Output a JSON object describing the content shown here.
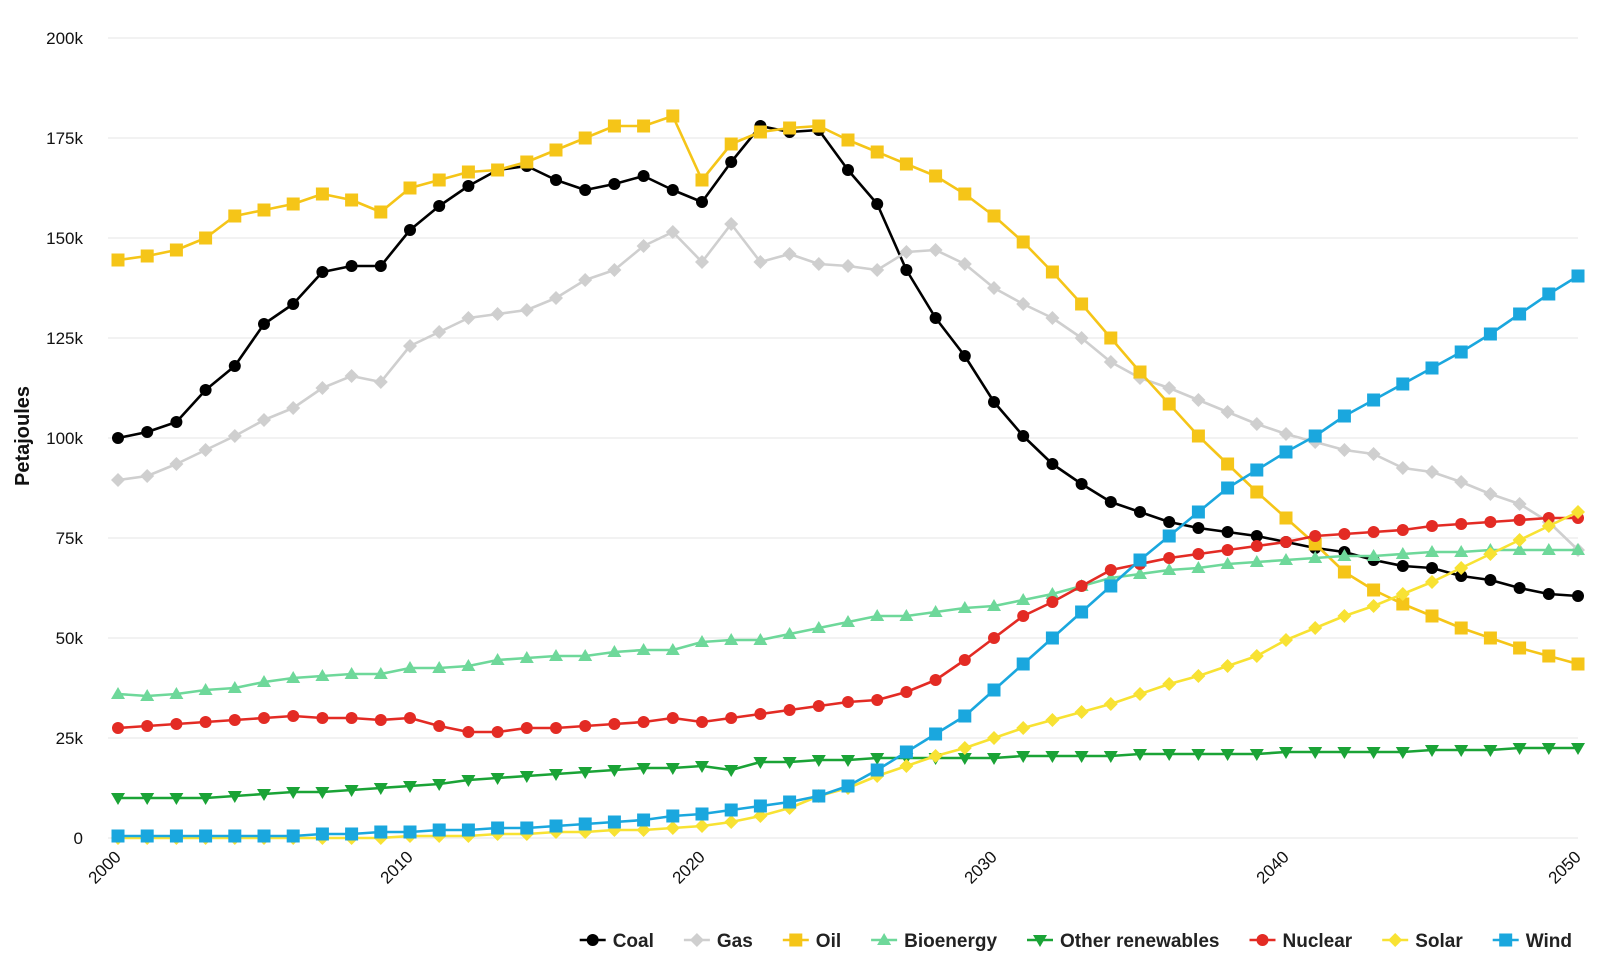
{
  "chart_data": {
    "type": "line",
    "title": "",
    "xlabel": "",
    "ylabel": "Petajoules",
    "xlim": [
      2000,
      2050
    ],
    "ylim": [
      0,
      200000
    ],
    "yticks": [
      0,
      25000,
      50000,
      75000,
      100000,
      125000,
      150000,
      175000,
      200000
    ],
    "ytick_labels": [
      "0",
      "25k",
      "50k",
      "75k",
      "100k",
      "125k",
      "150k",
      "175k",
      "200k"
    ],
    "xticks": [
      2000,
      2010,
      2020,
      2030,
      2040,
      2050
    ],
    "xtick_labels": [
      "2000",
      "2010",
      "2020",
      "2030",
      "2040",
      "2050"
    ],
    "grid": true,
    "legend_position": "bottom-right",
    "x": [
      2000,
      2001,
      2002,
      2003,
      2004,
      2005,
      2006,
      2007,
      2008,
      2009,
      2010,
      2011,
      2012,
      2013,
      2014,
      2015,
      2016,
      2017,
      2018,
      2019,
      2020,
      2021,
      2022,
      2023,
      2024,
      2025,
      2026,
      2027,
      2028,
      2029,
      2030,
      2031,
      2032,
      2033,
      2034,
      2035,
      2036,
      2037,
      2038,
      2039,
      2040,
      2041,
      2042,
      2043,
      2044,
      2045,
      2046,
      2047,
      2048,
      2049,
      2050
    ],
    "series": [
      {
        "name": "Coal",
        "color": "#000000",
        "marker": "circle",
        "values": [
          100000,
          101500,
          104000,
          112000,
          118000,
          128500,
          133500,
          141500,
          143000,
          143000,
          152000,
          158000,
          163000,
          167000,
          168000,
          164500,
          162000,
          163500,
          165500,
          162000,
          159000,
          169000,
          178000,
          176500,
          177000,
          167000,
          158500,
          142000,
          130000,
          120500,
          109000,
          100500,
          93500,
          88500,
          84000,
          81500,
          79000,
          77500,
          76500,
          75500,
          74000,
          72500,
          71500,
          69500,
          68000,
          67500,
          65500,
          64500,
          62500,
          61000,
          60500
        ]
      },
      {
        "name": "Gas",
        "color": "#cfcfcf",
        "marker": "diamond",
        "values": [
          89500,
          90500,
          93500,
          97000,
          100500,
          104500,
          107500,
          112500,
          115500,
          114000,
          123000,
          126500,
          130000,
          131000,
          132000,
          135000,
          139500,
          142000,
          148000,
          151500,
          144000,
          153500,
          144000,
          146000,
          143500,
          143000,
          142000,
          146500,
          147000,
          143500,
          137500,
          133500,
          130000,
          125000,
          119000,
          115000,
          112500,
          109500,
          106500,
          103500,
          101000,
          99000,
          97000,
          96000,
          92500,
          91500,
          89000,
          86000,
          83500,
          79000,
          72000
        ]
      },
      {
        "name": "Oil",
        "color": "#f5c518",
        "marker": "square",
        "values": [
          144500,
          145500,
          147000,
          150000,
          155500,
          157000,
          158500,
          161000,
          159500,
          156500,
          162500,
          164500,
          166500,
          167000,
          169000,
          172000,
          175000,
          178000,
          178000,
          180500,
          164500,
          173500,
          176500,
          177500,
          178000,
          174500,
          171500,
          168500,
          165500,
          161000,
          155500,
          149000,
          141500,
          133500,
          125000,
          116500,
          108500,
          100500,
          93500,
          86500,
          80000,
          73500,
          66500,
          62000,
          58500,
          55500,
          52500,
          50000,
          47500,
          45500,
          43500
        ]
      },
      {
        "name": "Bioenergy",
        "color": "#6ed89a",
        "marker": "triangle-up",
        "values": [
          36000,
          35500,
          36000,
          37000,
          37500,
          39000,
          40000,
          40500,
          41000,
          41000,
          42500,
          42500,
          43000,
          44500,
          45000,
          45500,
          45500,
          46500,
          47000,
          47000,
          49000,
          49500,
          49500,
          51000,
          52500,
          54000,
          55500,
          55500,
          56500,
          57500,
          58000,
          59500,
          61000,
          63000,
          65000,
          66000,
          67000,
          67500,
          68500,
          69000,
          69500,
          70000,
          70500,
          70500,
          71000,
          71500,
          71500,
          72000,
          72000,
          72000,
          72000
        ]
      },
      {
        "name": "Other renewables",
        "color": "#1aa336",
        "marker": "triangle-down",
        "values": [
          10000,
          10000,
          10000,
          10000,
          10500,
          11000,
          11500,
          11500,
          12000,
          12500,
          13000,
          13500,
          14500,
          15000,
          15500,
          16000,
          16500,
          17000,
          17500,
          17500,
          18000,
          17000,
          19000,
          19000,
          19500,
          19500,
          20000,
          20000,
          20000,
          20000,
          20000,
          20500,
          20500,
          20500,
          20500,
          21000,
          21000,
          21000,
          21000,
          21000,
          21500,
          21500,
          21500,
          21500,
          21500,
          22000,
          22000,
          22000,
          22500,
          22500,
          22500
        ]
      },
      {
        "name": "Nuclear",
        "color": "#e32b24",
        "marker": "circle",
        "values": [
          27500,
          28000,
          28500,
          29000,
          29500,
          30000,
          30500,
          30000,
          30000,
          29500,
          30000,
          28000,
          26500,
          26500,
          27500,
          27500,
          28000,
          28500,
          29000,
          30000,
          29000,
          30000,
          31000,
          32000,
          33000,
          34000,
          34500,
          36500,
          39500,
          44500,
          50000,
          55500,
          59000,
          63000,
          67000,
          68500,
          70000,
          71000,
          72000,
          73000,
          74000,
          75500,
          76000,
          76500,
          77000,
          78000,
          78500,
          79000,
          79500,
          80000,
          80000
        ]
      },
      {
        "name": "Solar",
        "color": "#f8e233",
        "marker": "diamond",
        "values": [
          0,
          0,
          0,
          0,
          0,
          0,
          0,
          0,
          0,
          0,
          500,
          500,
          500,
          1000,
          1000,
          1500,
          1500,
          2000,
          2000,
          2500,
          3000,
          4000,
          5500,
          7500,
          10500,
          12500,
          15500,
          18000,
          20500,
          22500,
          25000,
          27500,
          29500,
          31500,
          33500,
          36000,
          38500,
          40500,
          43000,
          45500,
          49500,
          52500,
          55500,
          58000,
          61000,
          64000,
          67500,
          71000,
          74500,
          78000,
          81500
        ]
      },
      {
        "name": "Wind",
        "color": "#1aa7de",
        "marker": "square",
        "values": [
          500,
          500,
          500,
          500,
          500,
          500,
          500,
          1000,
          1000,
          1500,
          1500,
          2000,
          2000,
          2500,
          2500,
          3000,
          3500,
          4000,
          4500,
          5500,
          6000,
          7000,
          8000,
          9000,
          10500,
          13000,
          17000,
          21500,
          26000,
          30500,
          37000,
          43500,
          50000,
          56500,
          63000,
          69500,
          75500,
          81500,
          87500,
          92000,
          96500,
          100500,
          105500,
          109500,
          113500,
          117500,
          121500,
          126000,
          131000,
          136000,
          140500
        ]
      }
    ]
  }
}
